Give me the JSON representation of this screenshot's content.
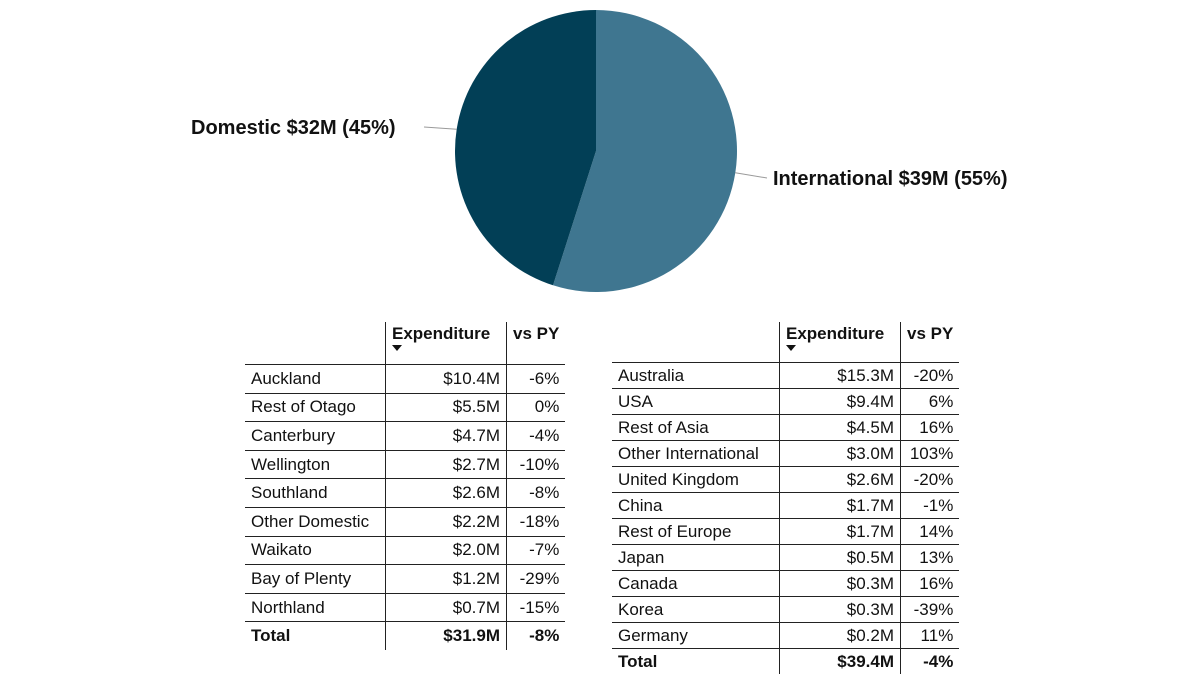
{
  "chart_data": [
    {
      "type": "pie",
      "title": "",
      "categories": [
        "Domestic",
        "International"
      ],
      "values": [
        32,
        39
      ],
      "percents": [
        45,
        55
      ],
      "labels": [
        "Domestic $32M (45%)",
        "International $39M (55%)"
      ],
      "colors": [
        "#023f56",
        "#3f7690"
      ]
    },
    {
      "type": "table",
      "headers": [
        "",
        "Expenditure",
        "vs PY"
      ],
      "sorted_column": "Expenditure",
      "rows": [
        {
          "name": "Auckland",
          "expenditure": "$10.4M",
          "vs_py": "-6%"
        },
        {
          "name": "Rest of Otago",
          "expenditure": "$5.5M",
          "vs_py": "0%"
        },
        {
          "name": "Canterbury",
          "expenditure": "$4.7M",
          "vs_py": "-4%"
        },
        {
          "name": "Wellington",
          "expenditure": "$2.7M",
          "vs_py": "-10%"
        },
        {
          "name": "Southland",
          "expenditure": "$2.6M",
          "vs_py": "-8%"
        },
        {
          "name": "Other Domestic",
          "expenditure": "$2.2M",
          "vs_py": "-18%"
        },
        {
          "name": "Waikato",
          "expenditure": "$2.0M",
          "vs_py": "-7%"
        },
        {
          "name": "Bay of Plenty",
          "expenditure": "$1.2M",
          "vs_py": "-29%"
        },
        {
          "name": "Northland",
          "expenditure": "$0.7M",
          "vs_py": "-15%"
        }
      ],
      "total": {
        "name": "Total",
        "expenditure": "$31.9M",
        "vs_py": "-8%"
      }
    },
    {
      "type": "table",
      "headers": [
        "",
        "Expenditure",
        "vs PY"
      ],
      "sorted_column": "Expenditure",
      "rows": [
        {
          "name": "Australia",
          "expenditure": "$15.3M",
          "vs_py": "-20%"
        },
        {
          "name": "USA",
          "expenditure": "$9.4M",
          "vs_py": "6%"
        },
        {
          "name": "Rest of Asia",
          "expenditure": "$4.5M",
          "vs_py": "16%"
        },
        {
          "name": "Other International",
          "expenditure": "$3.0M",
          "vs_py": "103%"
        },
        {
          "name": "United Kingdom",
          "expenditure": "$2.6M",
          "vs_py": "-20%"
        },
        {
          "name": "China",
          "expenditure": "$1.7M",
          "vs_py": "-1%"
        },
        {
          "name": "Rest of Europe",
          "expenditure": "$1.7M",
          "vs_py": "14%"
        },
        {
          "name": "Japan",
          "expenditure": "$0.5M",
          "vs_py": "13%"
        },
        {
          "name": "Canada",
          "expenditure": "$0.3M",
          "vs_py": "16%"
        },
        {
          "name": "Korea",
          "expenditure": "$0.3M",
          "vs_py": "-39%"
        },
        {
          "name": "Germany",
          "expenditure": "$0.2M",
          "vs_py": "11%"
        }
      ],
      "total": {
        "name": "Total",
        "expenditure": "$39.4M",
        "vs_py": "-4%"
      }
    }
  ]
}
